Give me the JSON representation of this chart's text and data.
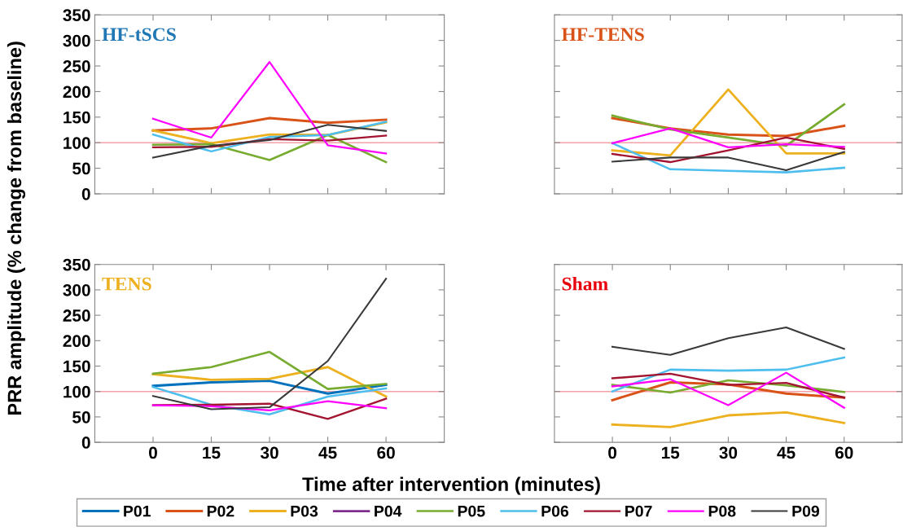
{
  "chart_data": [
    {
      "type": "line",
      "title": "HF-tSCS",
      "ylabel": "PRR amplitude (% change from baseline)",
      "x": [
        0,
        15,
        30,
        45,
        60
      ],
      "xlim": [
        -15,
        75
      ],
      "ylim": [
        0,
        350
      ],
      "xticks": [
        0,
        15,
        30,
        45,
        60
      ],
      "yticks": [
        0,
        50,
        100,
        150,
        200,
        250,
        300,
        350
      ],
      "tick_labels": "y",
      "grid": false,
      "legend": "bottom",
      "ref_lines": [
        {
          "axis": "y",
          "value": 100,
          "color": "#f4a0a8"
        }
      ],
      "series": [
        {
          "name": "P02",
          "color": "#d95319",
          "values": [
            124,
            128,
            148,
            139,
            145
          ]
        },
        {
          "name": "P03",
          "color": "#edb120",
          "values": [
            124,
            99,
            116,
            115,
            140
          ]
        },
        {
          "name": "P04",
          "color": "#7e2f8e",
          "values": [
            null,
            null,
            null,
            null,
            null
          ]
        },
        {
          "name": "P05",
          "color": "#77ac30",
          "values": [
            96,
            97,
            66,
            115,
            62
          ]
        },
        {
          "name": "P06",
          "color": "#4dbeee",
          "values": [
            116,
            83,
            111,
            115,
            141
          ]
        },
        {
          "name": "P07",
          "color": "#a2142f",
          "values": [
            91,
            92,
            107,
            104,
            114
          ]
        },
        {
          "name": "P08",
          "color": "#ff00ff",
          "values": [
            147,
            110,
            258,
            95,
            79
          ]
        },
        {
          "name": "P09",
          "color": "#3a3a3a",
          "values": [
            71,
            94,
            105,
            135,
            123
          ]
        }
      ]
    },
    {
      "type": "line",
      "title": "HF-TENS",
      "x": [
        0,
        15,
        30,
        45,
        60
      ],
      "xlim": [
        -15,
        75
      ],
      "ylim": [
        0,
        350
      ],
      "xticks": [
        0,
        15,
        30,
        45,
        60
      ],
      "yticks": [
        0,
        50,
        100,
        150,
        200,
        250,
        300,
        350
      ],
      "tick_labels": false,
      "grid": false,
      "legend": "bottom",
      "ref_lines": [
        {
          "axis": "y",
          "value": 100,
          "color": "#f4a0a8"
        }
      ],
      "series": [
        {
          "name": "P02",
          "color": "#d95319",
          "values": [
            148,
            128,
            116,
            113,
            133
          ]
        },
        {
          "name": "P03",
          "color": "#edb120",
          "values": [
            85,
            75,
            204,
            79,
            79
          ]
        },
        {
          "name": "P05",
          "color": "#77ac30",
          "values": [
            153,
            126,
            110,
            94,
            175
          ]
        },
        {
          "name": "P06",
          "color": "#4dbeee",
          "values": [
            99,
            48,
            45,
            42,
            51
          ]
        },
        {
          "name": "P07",
          "color": "#a2142f",
          "values": [
            78,
            62,
            85,
            110,
            88
          ]
        },
        {
          "name": "P08",
          "color": "#ff00ff",
          "values": [
            99,
            128,
            91,
            97,
            92
          ]
        },
        {
          "name": "P09",
          "color": "#3a3a3a",
          "values": [
            63,
            71,
            71,
            46,
            82
          ]
        }
      ]
    },
    {
      "type": "line",
      "title": "TENS",
      "xlabel": "Time after intervention (minutes)",
      "x": [
        0,
        15,
        30,
        45,
        60
      ],
      "xlim": [
        -15,
        75
      ],
      "ylim": [
        0,
        350
      ],
      "xticks": [
        0,
        15,
        30,
        45,
        60
      ],
      "yticks": [
        0,
        50,
        100,
        150,
        200,
        250,
        300,
        350
      ],
      "grid": false,
      "legend": "bottom",
      "ref_lines": [
        {
          "axis": "y",
          "value": 100,
          "color": "#f4a0a8"
        }
      ],
      "series": [
        {
          "name": "P01",
          "color": "#0072bd",
          "values": [
            111,
            118,
            121,
            96,
            113
          ]
        },
        {
          "name": "P03",
          "color": "#edb120",
          "values": [
            134,
            123,
            125,
            148,
            90
          ]
        },
        {
          "name": "P05",
          "color": "#77ac30",
          "values": [
            135,
            148,
            178,
            105,
            115
          ]
        },
        {
          "name": "P06",
          "color": "#4dbeee",
          "values": [
            109,
            74,
            55,
            90,
            106
          ]
        },
        {
          "name": "P07",
          "color": "#a2142f",
          "values": [
            73,
            74,
            76,
            46,
            86
          ]
        },
        {
          "name": "P08",
          "color": "#ff00ff",
          "values": [
            73,
            71,
            63,
            81,
            67
          ]
        },
        {
          "name": "P09",
          "color": "#3a3a3a",
          "values": [
            91,
            65,
            69,
            160,
            322
          ]
        }
      ]
    },
    {
      "type": "line",
      "title": "Sham",
      "x": [
        0,
        15,
        30,
        45,
        60
      ],
      "xlim": [
        -15,
        75
      ],
      "ylim": [
        0,
        350
      ],
      "xticks": [
        0,
        15,
        30,
        45,
        60
      ],
      "yticks": [
        0,
        50,
        100,
        150,
        200,
        250,
        300,
        350
      ],
      "tick_labels": "x",
      "grid": false,
      "legend": "bottom",
      "ref_lines": [
        {
          "axis": "y",
          "value": 100,
          "color": "#f4a0a8"
        }
      ],
      "series": [
        {
          "name": "P02",
          "color": "#d95319",
          "values": [
            83,
            118,
            114,
            96,
            88
          ]
        },
        {
          "name": "P03",
          "color": "#edb120",
          "values": [
            35,
            30,
            53,
            59,
            38
          ]
        },
        {
          "name": "P05",
          "color": "#77ac30",
          "values": [
            113,
            98,
            122,
            112,
            99
          ]
        },
        {
          "name": "P06",
          "color": "#4dbeee",
          "values": [
            100,
            143,
            141,
            143,
            167
          ]
        },
        {
          "name": "P07",
          "color": "#a2142f",
          "values": [
            126,
            135,
            113,
            117,
            88
          ]
        },
        {
          "name": "P08",
          "color": "#ff00ff",
          "values": [
            110,
            124,
            73,
            137,
            68
          ]
        },
        {
          "name": "P09",
          "color": "#3a3a3a",
          "values": [
            188,
            172,
            205,
            226,
            184
          ]
        }
      ]
    }
  ]
}
